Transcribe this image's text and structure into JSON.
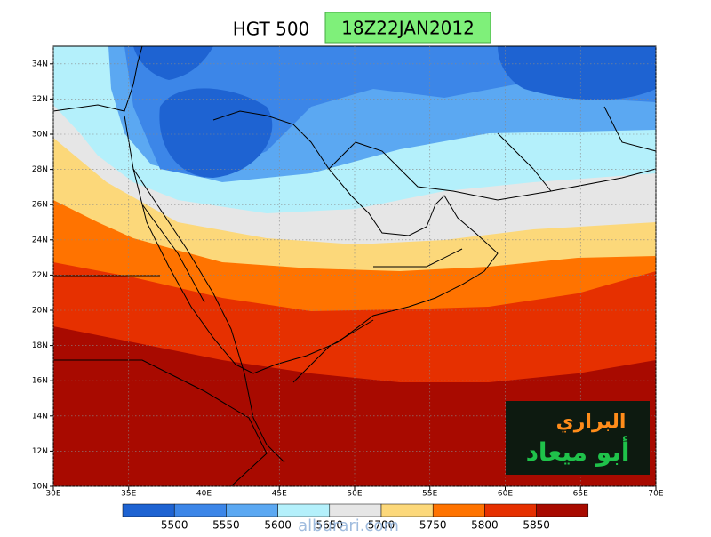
{
  "title": "HGT 500",
  "date": "18Z22JAN2012",
  "lon_range": [
    30,
    70
  ],
  "lat_range": [
    10,
    35
  ],
  "lon_ticks": [
    {
      "value": 30,
      "label": "30E"
    },
    {
      "value": 35,
      "label": "35E"
    },
    {
      "value": 40,
      "label": "40E"
    },
    {
      "value": 45,
      "label": "45E"
    },
    {
      "value": 50,
      "label": "50E"
    },
    {
      "value": 55,
      "label": "55E"
    },
    {
      "value": 60,
      "label": "60E"
    },
    {
      "value": 65,
      "label": "65E"
    },
    {
      "value": 70,
      "label": "70E"
    }
  ],
  "lat_ticks": [
    {
      "value": 10,
      "label": "10N"
    },
    {
      "value": 12,
      "label": "12N"
    },
    {
      "value": 14,
      "label": "14N"
    },
    {
      "value": 16,
      "label": "16N"
    },
    {
      "value": 18,
      "label": "18N"
    },
    {
      "value": 20,
      "label": "20N"
    },
    {
      "value": 22,
      "label": "22N"
    },
    {
      "value": 24,
      "label": "24N"
    },
    {
      "value": 26,
      "label": "26N"
    },
    {
      "value": 28,
      "label": "28N"
    },
    {
      "value": 30,
      "label": "30N"
    },
    {
      "value": 32,
      "label": "32N"
    },
    {
      "value": 34,
      "label": "34N"
    }
  ],
  "colorbar": {
    "levels": [
      5500,
      5550,
      5600,
      5650,
      5700,
      5750,
      5800,
      5850
    ],
    "colors": [
      "#1e63d2",
      "#3c86e8",
      "#5ba8f2",
      "#b4f0fb",
      "#e6e6e6",
      "#fcd87a",
      "#ff7300",
      "#e63000",
      "#a80a00"
    ]
  },
  "logo": {
    "line1": "البراري",
    "line2": "أبو ميعاد"
  },
  "watermark": "alburari.com"
}
